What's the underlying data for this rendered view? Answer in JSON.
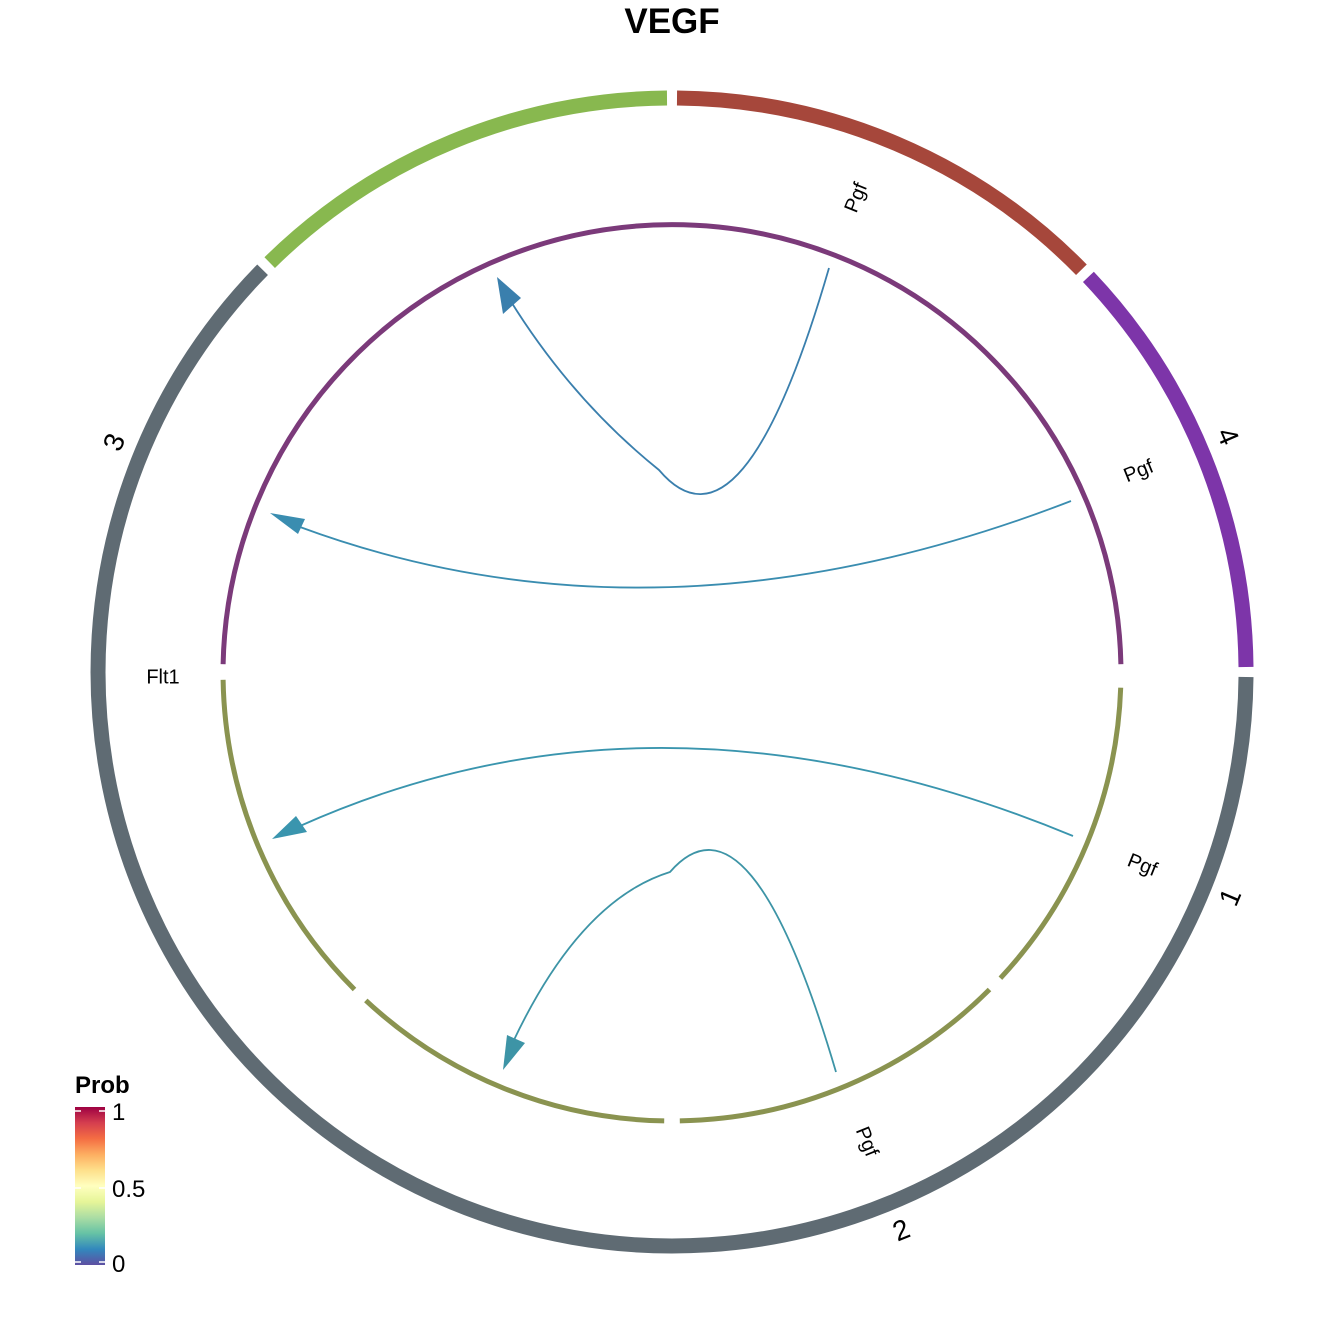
{
  "title": "VEGF",
  "groups": [
    {
      "id": "g1",
      "label": "1",
      "color": "#A6473B",
      "start": -90,
      "end": -44
    },
    {
      "id": "g2",
      "label": "2",
      "color": "#7D35A9",
      "start": -44,
      "end": 0
    },
    {
      "id": "g3",
      "label": "3",
      "color": "#5F6B73",
      "start": 0,
      "end": 225
    },
    {
      "id": "g4",
      "label": "4",
      "color": "#88B84F",
      "start": 225,
      "end": 270
    }
  ],
  "inner_arcs": [
    {
      "id": "ia-receiver",
      "color": "#7B3A7A",
      "start": 1,
      "end": 179
    },
    {
      "id": "ia-s1",
      "color": "#8A9350",
      "start": 182,
      "end": 223
    },
    {
      "id": "ia-s2",
      "color": "#8A9350",
      "start": 225,
      "end": 269
    },
    {
      "id": "ia-s3",
      "color": "#8A9350",
      "start": 271,
      "end": 313
    },
    {
      "id": "ia-s4",
      "color": "#8A9350",
      "start": 315,
      "end": 359
    }
  ],
  "ligand_receptor_labels": [
    {
      "id": "lbl-flt1",
      "text": "Flt1"
    },
    {
      "id": "lbl-pgf-top",
      "text": "Pgf"
    },
    {
      "id": "lbl-pgf-right-upper",
      "text": "Pgf"
    },
    {
      "id": "lbl-pgf-right-lower",
      "text": "Pgf"
    },
    {
      "id": "lbl-pgf-bottom",
      "text": "Pgf"
    }
  ],
  "links": [
    {
      "id": "link-top",
      "from": "Pgf",
      "to": "Flt1",
      "color": "#3A7FAD"
    },
    {
      "id": "link-upper",
      "from": "Pgf",
      "to": "Flt1",
      "color": "#3A8DB0"
    },
    {
      "id": "link-lower",
      "from": "Pgf",
      "to": "Flt1",
      "color": "#3A95AE"
    },
    {
      "id": "link-bottom",
      "from": "Pgf",
      "to": "Flt1",
      "color": "#3D94A6"
    }
  ],
  "legend": {
    "title": "Prob",
    "ticks": [
      "1",
      "0.5",
      "0"
    ],
    "colors": [
      "#9E0142",
      "#D53E4F",
      "#F46D43",
      "#FDAE61",
      "#FEE08B",
      "#FFFFBF",
      "#E6F598",
      "#ABDDA4",
      "#66C2A5",
      "#3288BD",
      "#5E4FA2"
    ]
  }
}
